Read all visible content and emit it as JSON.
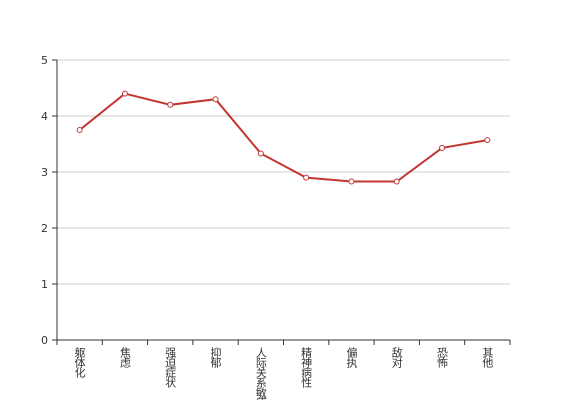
{
  "chart_data": {
    "type": "line",
    "categories": [
      "躯体化",
      "焦虑",
      "强迫症状",
      "抑郁",
      "人际关系敏感",
      "精神病性",
      "偏执",
      "敌对",
      "恐怖",
      "其他"
    ],
    "series": [
      {
        "color": "#c23531",
        "values": [
          3.75,
          4.4,
          4.2,
          4.3,
          3.33,
          2.9,
          2.83,
          2.83,
          3.43,
          3.57
        ]
      }
    ],
    "ylim": [
      0,
      5
    ],
    "yticks": [
      0,
      1,
      2,
      3,
      4,
      5
    ],
    "grid": true
  }
}
